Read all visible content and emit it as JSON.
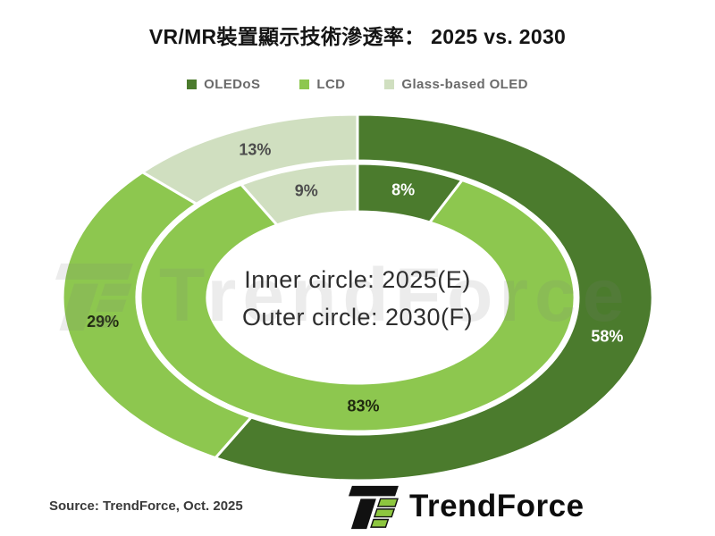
{
  "title": "VR/MR裝置顯示技術滲透率： 2025 vs. 2030",
  "legend": [
    {
      "label": "OLEDoS",
      "color": "#4b7b2d"
    },
    {
      "label": "LCD",
      "color": "#8dc74f"
    },
    {
      "label": "Glass-based OLED",
      "color": "#d0dfc0"
    }
  ],
  "center_text": {
    "line1": "Inner circle: 2025(E)",
    "line2": "Outer circle: 2030(F)"
  },
  "source": "Source: TrendForce, Oct. 2025",
  "logo_text": "TrendForce",
  "watermark_text": "TrendForce",
  "chart_data": {
    "type": "pie",
    "subtype": "nested-donut",
    "title": "VR/MR裝置顯示技術滲透率： 2025 vs. 2030",
    "categories": [
      "OLEDoS",
      "LCD",
      "Glass-based OLED"
    ],
    "series": [
      {
        "name": "2025(E)",
        "ring": "inner",
        "values": [
          8,
          83,
          9
        ]
      },
      {
        "name": "2030(F)",
        "ring": "outer",
        "values": [
          58,
          29,
          13
        ]
      }
    ],
    "unit": "%",
    "colors": [
      "#4b7b2d",
      "#8dc74f",
      "#d0dfc0"
    ],
    "label_colors": [
      "#ffffff",
      "#1f290f",
      "#4d4d4d"
    ],
    "start_angle_deg": 0,
    "direction": "clockwise",
    "legend_position": "top",
    "annotations": [
      "Inner circle: 2025(E)",
      "Outer circle: 2030(F)"
    ]
  }
}
